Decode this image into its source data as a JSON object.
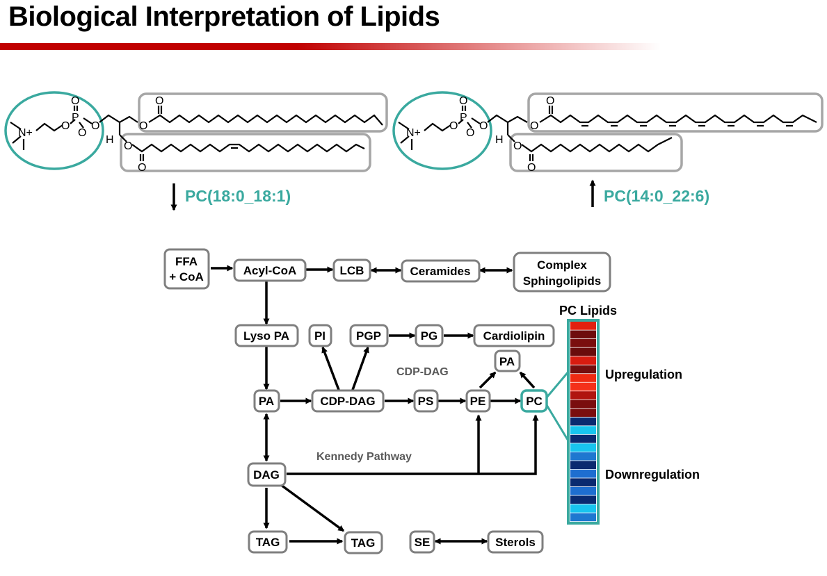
{
  "slide": {
    "title": "Biological Interpretation of Lipids",
    "accent_color": "#c00000",
    "teal_color": "#3aa99f"
  },
  "molecules": {
    "left": {
      "label": "PC(18:0_18:1)",
      "direction": "down"
    },
    "right": {
      "label": "PC(14:0_22:6)",
      "direction": "up"
    },
    "atoms": {
      "n_plus": "N+",
      "oxygen": "O",
      "phosphorus": "P",
      "hydrogen": "H"
    }
  },
  "pathway": {
    "nodes": {
      "ffa_line1": "FFA",
      "ffa_line2": "+ CoA",
      "acylcoa": "Acyl-CoA",
      "lcb": "LCB",
      "ceramides": "Ceramides",
      "complex_line1": "Complex",
      "complex_line2": "Sphingolipids",
      "lysopa": "Lyso PA",
      "pi": "PI",
      "pgp": "PGP",
      "pg": "PG",
      "cardiolipin": "Cardiolipin",
      "pa_top": "PA",
      "pa": "PA",
      "cdpdag": "CDP-DAG",
      "ps": "PS",
      "pe": "PE",
      "pc": "PC",
      "dag": "DAG",
      "tag1": "TAG",
      "tag2": "TAG",
      "se": "SE",
      "sterols": "Sterols"
    },
    "labels": {
      "cdp_dag_route": "CDP-DAG",
      "kennedy": "Kennedy Pathway"
    }
  },
  "heatmap": {
    "title": "PC Lipids",
    "upregulation": "Upregulation",
    "downregulation": "Downregulation",
    "cells": [
      "#e2200f",
      "#6e0d0d",
      "#7a0e0e",
      "#6a0c0c",
      "#d81c10",
      "#740e0e",
      "#ee2a12",
      "#f4301a",
      "#b0150f",
      "#7a0e0e",
      "#7a0e0e",
      "#0a2a70",
      "#18c4ee",
      "#0a2a70",
      "#18c4ee",
      "#1e78d0",
      "#0a2a70",
      "#1e6ed0",
      "#0a2a70",
      "#1e6ed0",
      "#0a2a70",
      "#18c4ee",
      "#1e78d0"
    ]
  }
}
